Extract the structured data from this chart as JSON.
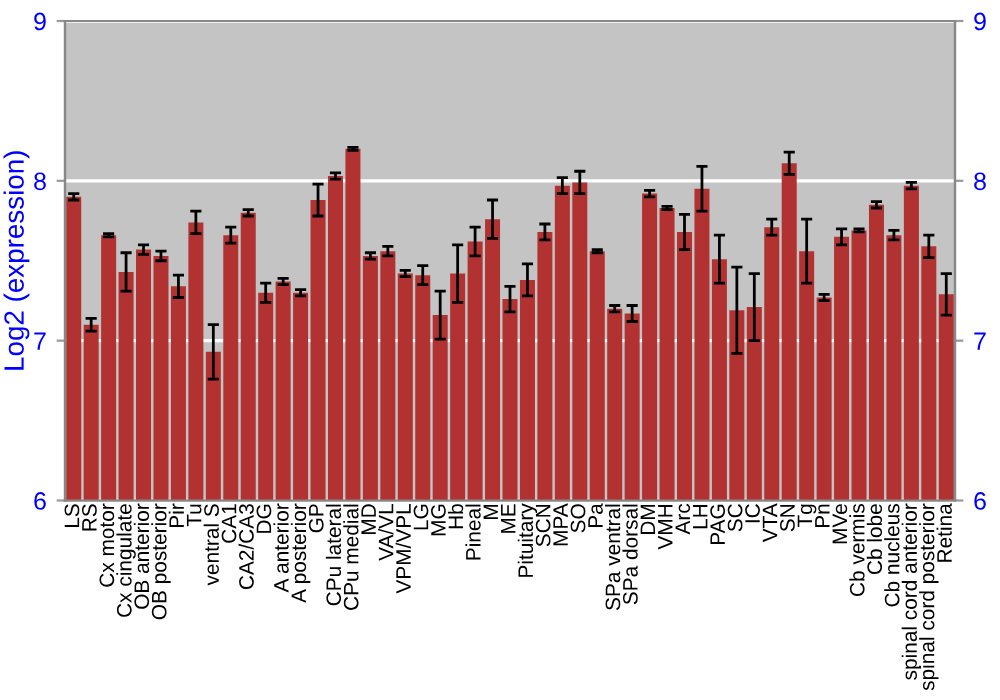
{
  "chart_data": {
    "type": "bar",
    "ylabel": "Log2 (expression)",
    "categories": [
      "LS",
      "RS",
      "Cx motor",
      "Cx cingulate",
      "OB anterior",
      "OB posterior",
      "Pir",
      "Tu",
      "ventral S",
      "CA1",
      "CA2/CA3",
      "DG",
      "A anterior",
      "A posterior",
      "GP",
      "CPu lateral",
      "CPu medial",
      "MD",
      "VA/VL",
      "VPM/VPL",
      "LG",
      "MG",
      "Hb",
      "Pineal",
      "M",
      "ME",
      "Pituitary",
      "SCN",
      "MPA",
      "SO",
      "Pa",
      "SPa ventral",
      "SPa dorsal",
      "DM",
      "VMH",
      "Arc",
      "LH",
      "PAG",
      "SC",
      "IC",
      "VTA",
      "SN",
      "Tg",
      "Pn",
      "MVe",
      "Cb vermis",
      "Cb lobe",
      "Cb nucleus",
      "spinal cord anterior",
      "spinal cord posterior",
      "Retina"
    ],
    "values": [
      7.9,
      7.1,
      7.66,
      7.43,
      7.57,
      7.53,
      7.34,
      7.74,
      6.93,
      7.66,
      7.8,
      7.3,
      7.37,
      7.3,
      7.88,
      8.03,
      8.2,
      7.53,
      7.56,
      7.42,
      7.41,
      7.16,
      7.42,
      7.62,
      7.76,
      7.26,
      7.38,
      7.68,
      7.97,
      7.99,
      7.56,
      7.2,
      7.17,
      7.92,
      7.83,
      7.68,
      7.95,
      7.51,
      7.19,
      7.21,
      7.71,
      8.11,
      7.56,
      7.27,
      7.65,
      7.69,
      7.85,
      7.66,
      7.97,
      7.59,
      7.29
    ],
    "errors": [
      0.02,
      0.04,
      0.01,
      0.12,
      0.03,
      0.03,
      0.07,
      0.07,
      0.17,
      0.05,
      0.02,
      0.06,
      0.02,
      0.02,
      0.1,
      0.02,
      0.01,
      0.02,
      0.03,
      0.02,
      0.06,
      0.15,
      0.18,
      0.09,
      0.12,
      0.08,
      0.1,
      0.05,
      0.05,
      0.07,
      0.01,
      0.02,
      0.05,
      0.02,
      0.01,
      0.11,
      0.14,
      0.15,
      0.27,
      0.21,
      0.05,
      0.07,
      0.2,
      0.02,
      0.05,
      0.01,
      0.02,
      0.03,
      0.02,
      0.07,
      0.13
    ],
    "color": "#b23232",
    "ylim": [
      6,
      9
    ],
    "yticks": [
      6,
      7,
      8,
      9
    ],
    "y2lim": [
      6,
      9
    ],
    "y2ticks": [
      6,
      7,
      8,
      9
    ],
    "grid": "y"
  }
}
